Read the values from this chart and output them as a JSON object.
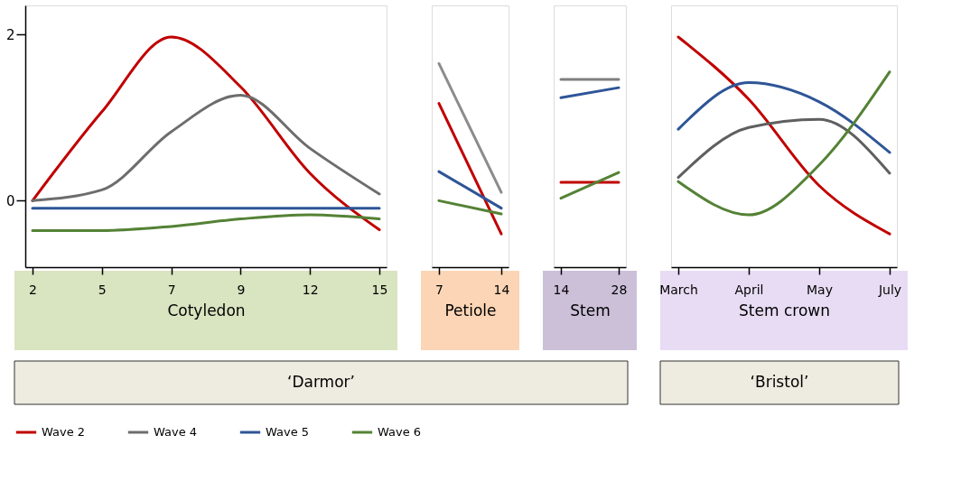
{
  "chart_data": [
    {
      "type": "line",
      "xlabel": "Cotyledon",
      "categories": [
        "2",
        "5",
        "7",
        "9",
        "12",
        "15"
      ],
      "ylim": [
        -0.8,
        2.35
      ],
      "yticks": [
        0,
        2
      ],
      "grid": false,
      "marker": "none",
      "line_style": "solid",
      "legend": "bottom left",
      "annotations": [
        "‘Darmor’"
      ],
      "series": [
        {
          "name": "Wave 2",
          "color": "#c00000",
          "values": [
            0.0,
            1.07,
            1.97,
            1.37,
            0.33,
            -0.35
          ]
        },
        {
          "name": "Wave 4",
          "color": "#6d6d6d",
          "values": [
            0.0,
            0.13,
            0.83,
            1.27,
            0.63,
            0.08
          ]
        },
        {
          "name": "Wave 5",
          "color": "#2e5597",
          "values": [
            -0.09,
            -0.09,
            -0.09,
            -0.09,
            -0.09,
            -0.09
          ]
        },
        {
          "name": "Wave 6",
          "color": "#548235",
          "values": [
            -0.36,
            -0.36,
            -0.31,
            -0.22,
            -0.17,
            -0.22
          ]
        }
      ]
    },
    {
      "type": "line",
      "xlabel": "Petiole",
      "categories": [
        "7",
        "14"
      ],
      "ylim": [
        -0.8,
        2.35
      ],
      "tick_labels": "x",
      "grid": false,
      "marker": "none",
      "line_style": "solid",
      "series": [
        {
          "color": "#c00000",
          "values": [
            1.17,
            -0.4
          ]
        },
        {
          "color": "#8c8c8c",
          "values": [
            1.65,
            0.1
          ]
        },
        {
          "color": "#2e5597",
          "values": [
            0.35,
            -0.09
          ]
        },
        {
          "color": "#548235",
          "values": [
            0.0,
            -0.16
          ]
        }
      ]
    },
    {
      "type": "line",
      "xlabel": "Stem",
      "categories": [
        "14",
        "28"
      ],
      "ylim": [
        -0.8,
        2.35
      ],
      "tick_labels": "x",
      "grid": false,
      "marker": "none",
      "line_style": "solid",
      "series": [
        {
          "color": "#c00000",
          "values": [
            0.22,
            0.22
          ]
        },
        {
          "color": "#7f7f7f",
          "values": [
            1.46,
            1.46
          ]
        },
        {
          "color": "#2e5597",
          "values": [
            1.24,
            1.36
          ]
        },
        {
          "color": "#548235",
          "values": [
            0.03,
            0.34
          ]
        }
      ]
    },
    {
      "type": "line",
      "xlabel": "Stem crown",
      "categories": [
        "March",
        "April",
        "May",
        "July"
      ],
      "ylim": [
        -0.8,
        2.35
      ],
      "tick_labels": "x",
      "grid": false,
      "marker": "none",
      "line_style": "solid",
      "annotations": [
        "‘Bristol’"
      ],
      "series": [
        {
          "color": "#c00000",
          "values": [
            1.97,
            1.22,
            0.18,
            -0.4
          ]
        },
        {
          "color": "#5f5f5f",
          "values": [
            0.28,
            0.88,
            0.98,
            0.33
          ]
        },
        {
          "color": "#2e5597",
          "values": [
            0.86,
            1.42,
            1.19,
            0.58
          ]
        },
        {
          "color": "#548235",
          "values": [
            0.23,
            -0.17,
            0.43,
            1.55
          ]
        }
      ]
    }
  ]
}
